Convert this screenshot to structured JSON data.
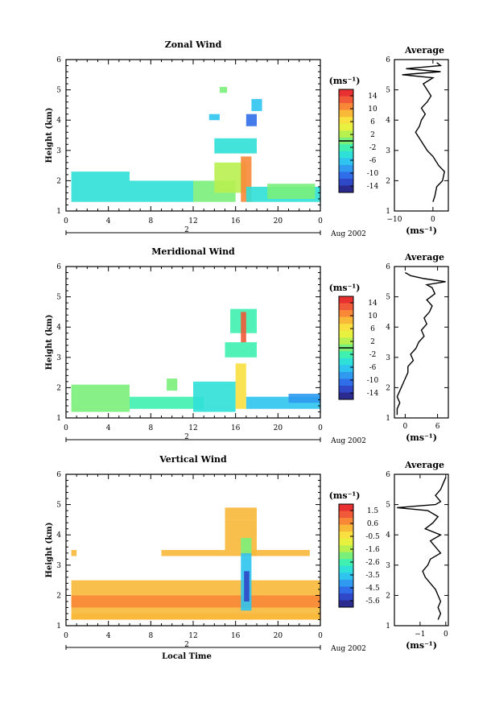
{
  "figure": {
    "date_label": "Aug 2002",
    "day_label": "2",
    "x_axis_label": "Local Time",
    "y_axis_label": "Height (km)",
    "units_label": "(ms⁻¹)",
    "average_title": "Average",
    "time_ticks": [
      "0",
      "4",
      "8",
      "12",
      "16",
      "20",
      "0"
    ]
  },
  "colormap": [
    "#2b2b8f",
    "#2f48c7",
    "#2f6ee8",
    "#2f9af0",
    "#2fc4f0",
    "#2fe0d8",
    "#3ff0b0",
    "#7af07a",
    "#b8f050",
    "#e8f040",
    "#f8e040",
    "#f8b838",
    "#f88838",
    "#f05a38",
    "#e83030"
  ],
  "chart_data": [
    {
      "type": "heatmap",
      "title": "Zonal Wind",
      "xlabel": "",
      "ylabel": "Height (km)",
      "x_range_hours": [
        0,
        24
      ],
      "ylim": [
        1,
        6
      ],
      "yticks": [
        "1",
        "2",
        "3",
        "4",
        "5",
        "6"
      ],
      "colorbar": {
        "range": [
          -16,
          16
        ],
        "ticks": [
          "14",
          "10",
          "6",
          "2",
          "-2",
          "-6",
          "-10",
          "-14"
        ],
        "zero_line": 0
      },
      "regions": [
        {
          "x": [
            0.5,
            6
          ],
          "y": [
            1.3,
            2.3
          ],
          "v": -5
        },
        {
          "x": [
            6,
            12
          ],
          "y": [
            1.3,
            2.0
          ],
          "v": -4
        },
        {
          "x": [
            12,
            16
          ],
          "y": [
            1.3,
            2.0
          ],
          "v": -1
        },
        {
          "x": [
            14,
            17
          ],
          "y": [
            1.6,
            2.6
          ],
          "v": 3
        },
        {
          "x": [
            16.5,
            17.5
          ],
          "y": [
            1.3,
            2.8
          ],
          "v": 11
        },
        {
          "x": [
            17,
            24
          ],
          "y": [
            1.3,
            1.8
          ],
          "v": -5
        },
        {
          "x": [
            19,
            23.5
          ],
          "y": [
            1.4,
            1.9
          ],
          "v": 1
        },
        {
          "x": [
            14,
            18
          ],
          "y": [
            2.9,
            3.4
          ],
          "v": -4
        },
        {
          "x": [
            17,
            18
          ],
          "y": [
            3.8,
            4.2
          ],
          "v": -10
        },
        {
          "x": [
            13.5,
            14.5
          ],
          "y": [
            4.0,
            4.2
          ],
          "v": -6
        },
        {
          "x": [
            17.5,
            18.5
          ],
          "y": [
            4.3,
            4.7
          ],
          "v": -7
        },
        {
          "x": [
            14.5,
            15.2
          ],
          "y": [
            4.9,
            5.1
          ],
          "v": 0
        }
      ],
      "profile": {
        "title": "Average",
        "xlim": [
          -10,
          4
        ],
        "xticks": [
          -10,
          0
        ],
        "xtick_labels": [
          "−10",
          "0"
        ],
        "xlabel": "(ms⁻¹)",
        "ylim": [
          1,
          6
        ],
        "yticks": [
          "1",
          "2",
          "3",
          "4",
          "5",
          "6"
        ],
        "height_km": [
          1.3,
          1.5,
          1.8,
          2.0,
          2.3,
          2.5,
          2.8,
          3.0,
          3.2,
          3.4,
          3.6,
          3.8,
          4.0,
          4.2,
          4.4,
          4.6,
          4.8,
          5.0,
          5.2,
          5.4,
          5.5,
          5.6,
          5.7,
          5.8,
          5.9
        ],
        "speed": [
          0,
          0.5,
          1.0,
          2.5,
          3.0,
          1.5,
          0,
          -1.5,
          -2.5,
          -3.5,
          -4.5,
          -3.5,
          -3.0,
          -2.0,
          -3.0,
          -1.5,
          -0.5,
          -1.5,
          -2.5,
          0,
          -8,
          2,
          -7,
          2,
          1
        ]
      }
    },
    {
      "type": "heatmap",
      "title": "Meridional Wind",
      "xlabel": "",
      "ylabel": "Height (km)",
      "x_range_hours": [
        0,
        24
      ],
      "ylim": [
        1,
        6
      ],
      "yticks": [
        "1",
        "2",
        "3",
        "4",
        "5",
        "6"
      ],
      "colorbar": {
        "range": [
          -16,
          16
        ],
        "ticks": [
          "14",
          "10",
          "6",
          "2",
          "-2",
          "-6",
          "-10",
          "-14"
        ],
        "zero_line": 0
      },
      "regions": [
        {
          "x": [
            0.5,
            6
          ],
          "y": [
            1.2,
            2.1
          ],
          "v": -1
        },
        {
          "x": [
            6,
            13
          ],
          "y": [
            1.3,
            1.7
          ],
          "v": -3
        },
        {
          "x": [
            12,
            16
          ],
          "y": [
            1.2,
            2.2
          ],
          "v": -5
        },
        {
          "x": [
            16,
            17
          ],
          "y": [
            1.3,
            2.8
          ],
          "v": 7
        },
        {
          "x": [
            17,
            24
          ],
          "y": [
            1.3,
            1.7
          ],
          "v": -6
        },
        {
          "x": [
            21,
            24
          ],
          "y": [
            1.5,
            1.8
          ],
          "v": -8
        },
        {
          "x": [
            9.5,
            10.5
          ],
          "y": [
            1.9,
            2.3
          ],
          "v": 1
        },
        {
          "x": [
            15,
            18
          ],
          "y": [
            3.0,
            3.5
          ],
          "v": -3
        },
        {
          "x": [
            15.5,
            18
          ],
          "y": [
            3.8,
            4.6
          ],
          "v": -2
        },
        {
          "x": [
            16.5,
            17
          ],
          "y": [
            3.5,
            4.5
          ],
          "v": 13
        }
      ],
      "profile": {
        "title": "Average",
        "xlim": [
          -2,
          8
        ],
        "xticks": [
          0,
          6
        ],
        "xtick_labels": [
          "0",
          "6"
        ],
        "xlabel": "(ms⁻¹)",
        "ylim": [
          1,
          6
        ],
        "yticks": [
          "1",
          "2",
          "3",
          "4",
          "5",
          "6"
        ],
        "height_km": [
          1.1,
          1.3,
          1.5,
          1.7,
          1.9,
          2.1,
          2.3,
          2.5,
          2.7,
          2.9,
          3.1,
          3.3,
          3.5,
          3.7,
          3.9,
          4.1,
          4.3,
          4.5,
          4.7,
          4.9,
          5.1,
          5.3,
          5.4,
          5.5,
          5.6,
          5.7,
          5.8
        ],
        "speed": [
          -1.5,
          -1.5,
          -1.0,
          -1.5,
          -1.0,
          -0.5,
          0,
          0.5,
          0.5,
          1.5,
          1.0,
          2.0,
          2.5,
          3.5,
          3.0,
          4.0,
          3.5,
          4.5,
          5.0,
          4.0,
          5.5,
          5.0,
          4.0,
          7.5,
          3.5,
          1.0,
          0
        ]
      }
    },
    {
      "type": "heatmap",
      "title": "Vertical Wind",
      "xlabel": "Local Time",
      "ylabel": "Height (km)",
      "x_range_hours": [
        0,
        24
      ],
      "ylim": [
        1,
        6
      ],
      "yticks": [
        "1",
        "2",
        "3",
        "4",
        "5",
        "6"
      ],
      "colorbar": {
        "range": [
          -6.0,
          2.0
        ],
        "ticks": [
          "1.5",
          "0.6",
          "-0.5",
          "-1.6",
          "-2.6",
          "-3.5",
          "-4.5",
          "-5.6"
        ],
        "zero_line": null
      },
      "regions": [
        {
          "x": [
            0.5,
            24
          ],
          "y": [
            1.2,
            2.5
          ],
          "v": 0.2
        },
        {
          "x": [
            0.5,
            24
          ],
          "y": [
            1.6,
            2.0
          ],
          "v": 0.5
        },
        {
          "x": [
            0.5,
            24
          ],
          "y": [
            1.2,
            1.4
          ],
          "v": 0.0
        },
        {
          "x": [
            0.5,
            1
          ],
          "y": [
            3.3,
            3.5
          ],
          "v": 0.3
        },
        {
          "x": [
            9,
            15
          ],
          "y": [
            3.3,
            3.5
          ],
          "v": 0.2
        },
        {
          "x": [
            17,
            23
          ],
          "y": [
            3.3,
            3.5
          ],
          "v": 0.2
        },
        {
          "x": [
            15,
            18
          ],
          "y": [
            3.3,
            4.5
          ],
          "v": 0.3
        },
        {
          "x": [
            16.5,
            17.5
          ],
          "y": [
            1.5,
            3.4
          ],
          "v": -3.5
        },
        {
          "x": [
            16.8,
            17.3
          ],
          "y": [
            1.8,
            2.8
          ],
          "v": -5.0
        },
        {
          "x": [
            16.5,
            17.5
          ],
          "y": [
            3.4,
            3.9
          ],
          "v": -2.2
        },
        {
          "x": [
            15,
            18
          ],
          "y": [
            4.5,
            4.9
          ],
          "v": 0.1
        }
      ],
      "profile": {
        "title": "Average",
        "xlim": [
          -2.0,
          0.1
        ],
        "xticks": [
          -1,
          0
        ],
        "xtick_labels": [
          "−1",
          "0"
        ],
        "xlabel": "(ms⁻¹)",
        "ylim": [
          1,
          6
        ],
        "yticks": [
          "1",
          "2",
          "3",
          "4",
          "5",
          "6"
        ],
        "height_km": [
          1.2,
          1.4,
          1.6,
          1.8,
          2.0,
          2.2,
          2.4,
          2.6,
          2.8,
          3.0,
          3.2,
          3.4,
          3.6,
          3.8,
          4.0,
          4.2,
          4.4,
          4.6,
          4.8,
          4.9,
          5.0,
          5.1,
          5.3,
          5.5,
          5.7,
          5.9
        ],
        "speed": [
          -0.3,
          -0.2,
          -0.3,
          -0.2,
          -0.3,
          -0.4,
          -0.6,
          -0.8,
          -0.9,
          -0.7,
          -0.6,
          -0.2,
          -0.4,
          -0.6,
          -0.2,
          -0.8,
          -0.5,
          -0.3,
          -0.7,
          -1.9,
          -0.4,
          -0.2,
          -0.4,
          -0.2,
          -0.1,
          0
        ]
      }
    }
  ]
}
